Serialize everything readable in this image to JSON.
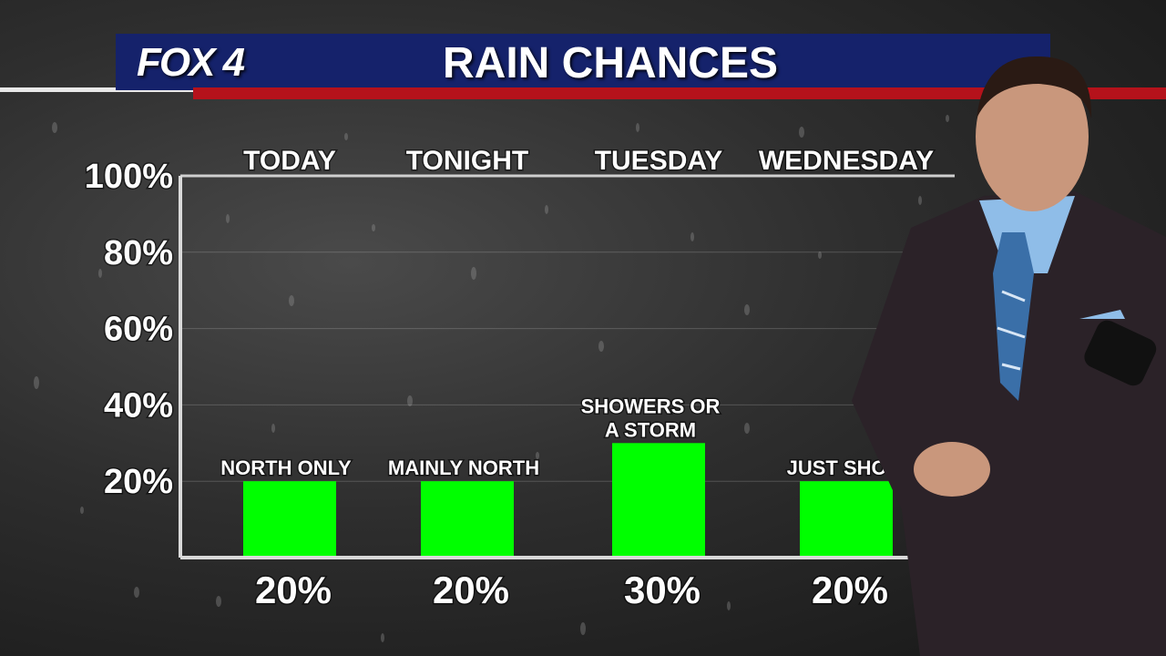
{
  "header": {
    "logo": "FOX 4",
    "title": "RAIN CHANCES"
  },
  "colors": {
    "header_blue": "#15226b",
    "accent_red": "#b5121b",
    "bar_green": "#00ff00"
  },
  "chart_data": {
    "type": "bar",
    "title": "RAIN CHANCES",
    "categories": [
      "TODAY",
      "TONIGHT",
      "TUESDAY",
      "WEDNESDAY"
    ],
    "values": [
      20,
      20,
      30,
      20
    ],
    "value_labels": [
      "20%",
      "20%",
      "30%",
      "20%"
    ],
    "annotations": [
      "NORTH ONLY",
      "MAINLY NORTH",
      "SHOWERS OR A STORM",
      "JUST SHOW"
    ],
    "y_ticks": [
      "100%",
      "80%",
      "60%",
      "40%",
      "20%"
    ],
    "y_tick_values": [
      100,
      80,
      60,
      40,
      20
    ],
    "ylim": [
      0,
      100
    ],
    "grid": true,
    "legend": "none"
  }
}
